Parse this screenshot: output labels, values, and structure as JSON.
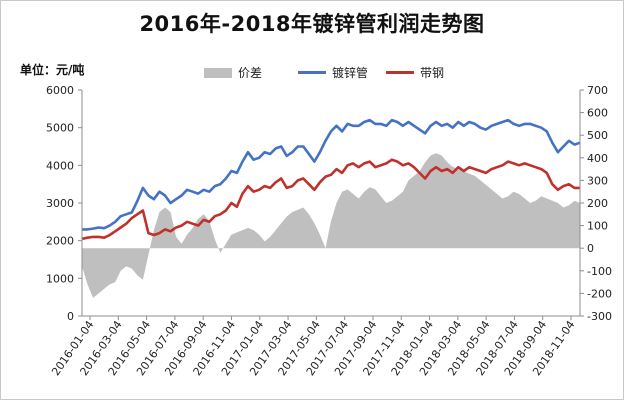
{
  "chart_data": {
    "type": "line",
    "title": "2016年-2018年镀锌管利润走势图",
    "left_axis_label": "单位：元/吨",
    "left_axis": {
      "min": 0,
      "max": 6000,
      "step": 1000,
      "ticks": [
        "0",
        "1000",
        "2000",
        "3000",
        "4000",
        "5000",
        "6000"
      ]
    },
    "right_axis": {
      "min": -300,
      "max": 700,
      "step": 100,
      "ticks": [
        "-300",
        "-200",
        "-100",
        "0",
        "100",
        "200",
        "300",
        "400",
        "500",
        "600",
        "700"
      ]
    },
    "x_tick_labels": [
      "2016-01-04",
      "2016-03-04",
      "2016-05-04",
      "2016-07-04",
      "2016-09-04",
      "2016-11-04",
      "2017-01-04",
      "2017-03-04",
      "2017-05-04",
      "2017-07-04",
      "2017-09-04",
      "2017-11-04",
      "2018-01-04",
      "2018-03-04",
      "2018-05-04",
      "2018-07-04",
      "2018-09-04",
      "2018-11-04"
    ],
    "legend_position": "top",
    "grid": false,
    "series": [
      {
        "name": "价差",
        "type": "area",
        "axis": "right",
        "color": "#bfbfbf",
        "values": [
          -80,
          -160,
          -220,
          -200,
          -180,
          -160,
          -150,
          -100,
          -80,
          -90,
          -120,
          -140,
          -30,
          80,
          160,
          180,
          160,
          50,
          20,
          60,
          90,
          130,
          150,
          120,
          40,
          -20,
          20,
          60,
          70,
          80,
          90,
          80,
          60,
          30,
          50,
          80,
          110,
          140,
          160,
          170,
          180,
          150,
          110,
          60,
          0,
          120,
          200,
          250,
          260,
          240,
          220,
          250,
          270,
          260,
          230,
          200,
          210,
          230,
          250,
          300,
          320,
          340,
          380,
          410,
          420,
          410,
          380,
          360,
          350,
          340,
          330,
          320,
          300,
          280,
          260,
          240,
          220,
          230,
          250,
          240,
          220,
          200,
          210,
          230,
          220,
          210,
          200,
          180,
          190,
          210,
          200
        ]
      },
      {
        "name": "镀锌管",
        "type": "line",
        "axis": "left",
        "color": "#4472c4",
        "values": [
          2300,
          2300,
          2320,
          2350,
          2330,
          2400,
          2500,
          2650,
          2700,
          2750,
          3050,
          3400,
          3200,
          3100,
          3300,
          3200,
          3000,
          3100,
          3200,
          3350,
          3300,
          3250,
          3350,
          3300,
          3450,
          3500,
          3650,
          3850,
          3800,
          4100,
          4350,
          4150,
          4200,
          4350,
          4300,
          4450,
          4500,
          4250,
          4350,
          4500,
          4500,
          4300,
          4100,
          4350,
          4650,
          4900,
          5050,
          4900,
          5100,
          5050,
          5050,
          5150,
          5200,
          5100,
          5100,
          5050,
          5200,
          5150,
          5050,
          5150,
          5050,
          4950,
          4850,
          5050,
          5150,
          5050,
          5100,
          5000,
          5150,
          5050,
          5150,
          5100,
          5000,
          4950,
          5050,
          5100,
          5150,
          5200,
          5100,
          5050,
          5100,
          5100,
          5050,
          5000,
          4900,
          4600,
          4350,
          4500,
          4650,
          4550,
          4600
        ]
      },
      {
        "name": "带钢",
        "type": "line",
        "axis": "left",
        "color": "#c0312b",
        "values": [
          2050,
          2080,
          2100,
          2100,
          2080,
          2150,
          2250,
          2350,
          2450,
          2600,
          2700,
          2800,
          2200,
          2150,
          2200,
          2300,
          2250,
          2350,
          2400,
          2500,
          2450,
          2400,
          2550,
          2500,
          2650,
          2700,
          2800,
          3000,
          2900,
          3250,
          3450,
          3300,
          3350,
          3450,
          3400,
          3550,
          3650,
          3400,
          3450,
          3600,
          3650,
          3500,
          3350,
          3550,
          3700,
          3750,
          3900,
          3800,
          4000,
          4050,
          3950,
          4050,
          4100,
          3950,
          4000,
          4050,
          4150,
          4100,
          4000,
          4050,
          3950,
          3800,
          3650,
          3850,
          3950,
          3850,
          3900,
          3800,
          3950,
          3850,
          3950,
          3900,
          3850,
          3800,
          3900,
          3950,
          4000,
          4100,
          4050,
          4000,
          4050,
          4000,
          3950,
          3900,
          3800,
          3500,
          3350,
          3450,
          3500,
          3400,
          3400
        ]
      }
    ]
  }
}
